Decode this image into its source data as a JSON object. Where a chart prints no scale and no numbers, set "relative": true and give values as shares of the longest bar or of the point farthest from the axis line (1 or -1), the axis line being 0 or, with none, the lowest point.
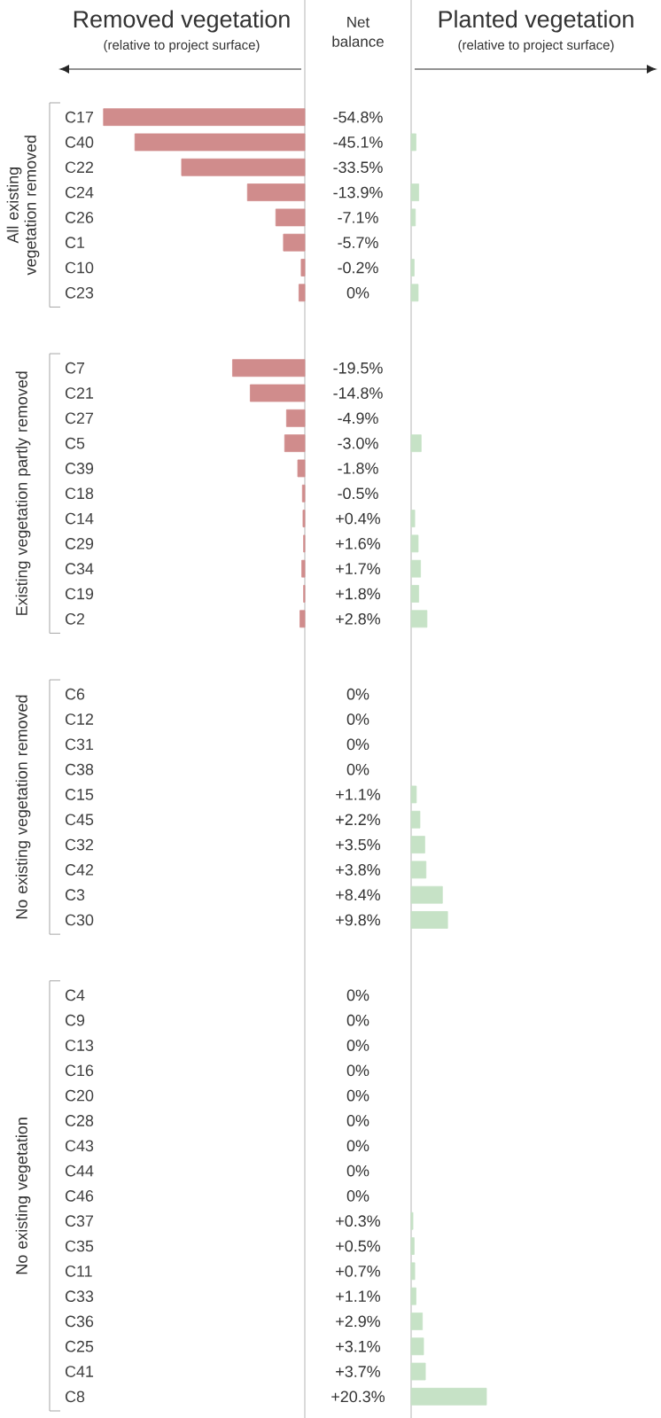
{
  "chart_data": [
    {
      "type": "bar",
      "orientation": "horizontal",
      "relative": true,
      "title": "Removed vegetation",
      "subtitle": "(relative to project surface)",
      "categories": [
        "C17",
        "C40",
        "C22",
        "C24",
        "C26",
        "C1",
        "C10",
        "C23",
        null,
        null,
        "C7",
        "C21",
        "C27",
        "C5",
        "C39",
        "C18",
        "C14",
        "C29",
        "C34",
        "C19",
        "C2",
        null,
        null,
        "C6",
        "C12",
        "C31",
        "C38",
        "C15",
        "C45",
        "C32",
        "C42",
        "C3",
        "C30",
        null,
        null,
        "C4",
        "C9",
        "C13",
        "C16",
        "C20",
        "C28",
        "C43",
        "C44",
        "C46",
        "C37",
        "C35",
        "C11",
        "C33",
        "C36",
        "C25",
        "C41",
        "C8"
      ],
      "series": [
        {
          "color": "#d08c8c",
          "values": [
            -1,
            -0.844,
            -0.612,
            -0.285,
            -0.144,
            -0.106,
            -0.018,
            -0.029,
            null,
            null,
            -0.359,
            -0.271,
            -0.091,
            -0.1,
            -0.035,
            -0.012,
            -0.009,
            -0.006,
            -0.015,
            -0.006,
            -0.024,
            null,
            null,
            null,
            null,
            null,
            null,
            null,
            null,
            null,
            null,
            null,
            null,
            null,
            null,
            null,
            null,
            null,
            null,
            null,
            null,
            null,
            null,
            null,
            null,
            null,
            null,
            null,
            null,
            null,
            null,
            null
          ]
        }
      ],
      "annotations": [
        "All existing vegetation removed",
        "Existing vegetation partly removed",
        "No existing vegetation removed",
        "No existing vegetation"
      ]
    },
    {
      "type": "other",
      "title": "Net balance",
      "annotations": [
        "-54.8%",
        "-45.1%",
        "-33.5%",
        "-13.9%",
        "-7.1%",
        "-5.7%",
        "-0.2%",
        "0%",
        "-19.5%",
        "-14.8%",
        "-4.9%",
        "-3.0%",
        "-1.8%",
        "-0.5%",
        "+0.4%",
        "+1.6%",
        "+1.7%",
        "+1.8%",
        "+2.8%",
        "0%",
        "0%",
        "0%",
        "0%",
        "+1.1%",
        "+2.2%",
        "+3.5%",
        "+3.8%",
        "+8.4%",
        "+9.8%",
        "0%",
        "0%",
        "0%",
        "0%",
        "0%",
        "0%",
        "0%",
        "0%",
        "0%",
        "+0.3%",
        "+0.5%",
        "+0.7%",
        "+1.1%",
        "+2.9%",
        "+3.1%",
        "+3.7%",
        "+20.3%"
      ]
    },
    {
      "type": "bar",
      "orientation": "horizontal",
      "relative": true,
      "title": "Planted vegetation",
      "subtitle": "(relative to project surface)",
      "categories": [
        null,
        null,
        null,
        null,
        null,
        null,
        null,
        null,
        null,
        null,
        null,
        null,
        null,
        null,
        null,
        null,
        null,
        null,
        null,
        null,
        null,
        null,
        null,
        null,
        null,
        null,
        null,
        null,
        null,
        null,
        null,
        null,
        null,
        null,
        null,
        null,
        null,
        null,
        null,
        null,
        null,
        null,
        null,
        null,
        null,
        null,
        null,
        null,
        null,
        null,
        null,
        null
      ],
      "series": [
        {
          "color": "#c6e2c6",
          "values": [
            null,
            0.064,
            null,
            0.101,
            0.056,
            null,
            0.04,
            0.093,
            null,
            null,
            null,
            null,
            null,
            0.133,
            null,
            null,
            0.048,
            0.093,
            0.125,
            0.101,
            0.21,
            null,
            null,
            null,
            null,
            null,
            null,
            0.069,
            0.117,
            0.181,
            0.197,
            0.415,
            0.484,
            null,
            null,
            null,
            null,
            null,
            null,
            null,
            null,
            null,
            null,
            null,
            0.024,
            0.04,
            0.048,
            0.064,
            0.149,
            0.165,
            0.189,
            1
          ]
        }
      ]
    }
  ]
}
